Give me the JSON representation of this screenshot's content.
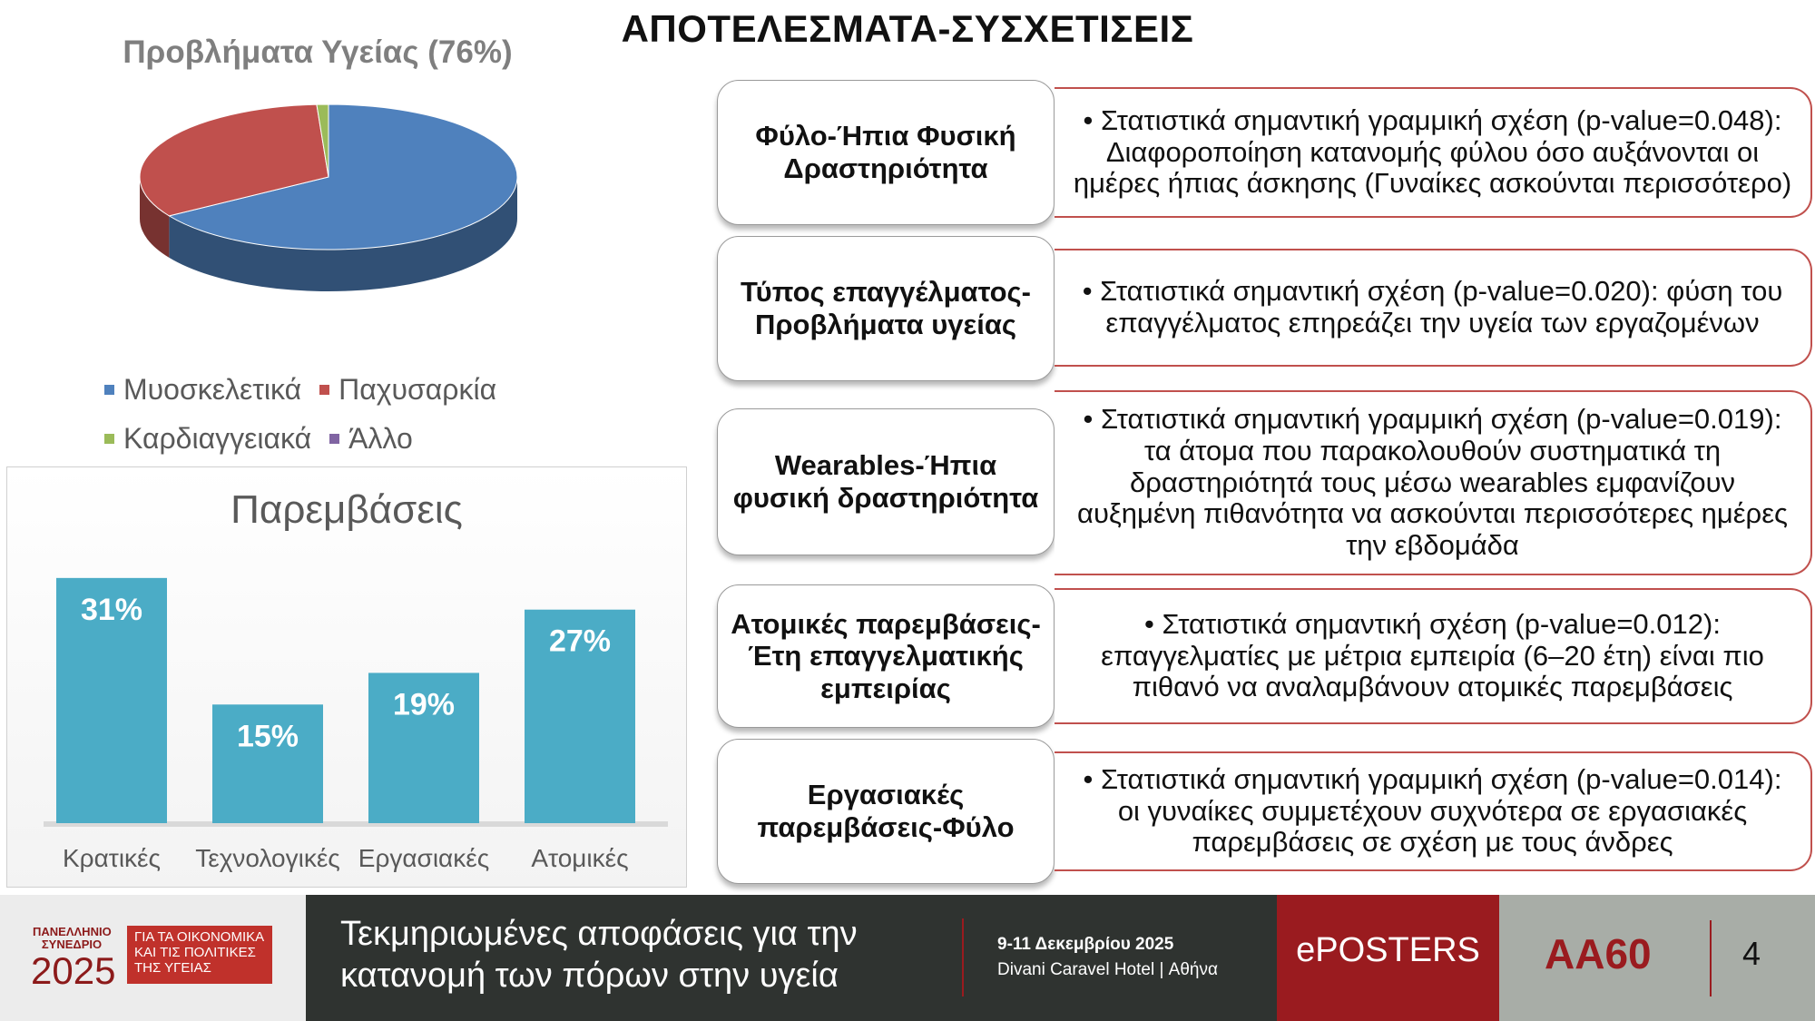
{
  "title": "ΑΠΟΤΕΛΕΣΜΑΤΑ-ΣΥΣΧΕΤΙΣΕΙΣ",
  "chart_data": [
    {
      "type": "pie",
      "title": "Προβλήματα Υγείας (76%)",
      "categories": [
        "Μυοσκελετικά",
        "Παχυσαρκία",
        "Καρδιαγγειακά",
        "Άλλο"
      ],
      "values": [
        66,
        33,
        1,
        0
      ],
      "colors": [
        "#4f81bd",
        "#c0504d",
        "#9bbb59",
        "#8064a2"
      ],
      "legend": "bottom"
    },
    {
      "type": "bar",
      "title": "Παρεμβάσεις",
      "categories": [
        "Κρατικές",
        "Τεχνολογικές",
        "Εργασιακές",
        "Ατομικές"
      ],
      "values": [
        31,
        15,
        19,
        27
      ],
      "value_labels": [
        "31%",
        "15%",
        "19%",
        "27%"
      ],
      "ylim": [
        0,
        35
      ],
      "color": "#4bacc6",
      "grid": false
    }
  ],
  "correlations": [
    {
      "label": "Φύλο-Ήπια Φυσική Δραστηριότητα",
      "text": "• Στατιστικά σημαντική γραμμική σχέση (p-value=0.048): Διαφοροποίηση κατανομής φύλου όσο αυξάνονται οι ημέρες ήπιας άσκησης (Γυναίκες ασκούνται περισσότερο)"
    },
    {
      "label": "Τύπος επαγγέλματος-Προβλήματα υγείας",
      "text": "• Στατιστικά σημαντική σχέση (p-value=0.020): φύση του επαγγέλματος επηρεάζει την υγεία των εργαζομένων"
    },
    {
      "label": "Wearables-Ήπια φυσική δραστηριότητα",
      "text": "• Στατιστικά σημαντική γραμμική σχέση (p-value=0.019): τα άτομα που παρακολουθούν συστηματικά τη δραστηριότητά τους μέσω wearables εμφανίζουν αυξημένη πιθανότητα να ασκούνται περισσότερες ημέρες την εβδομάδα"
    },
    {
      "label": "Ατομικές παρεμβάσεις-Έτη επαγγελματικής εμπειρίας",
      "text": "• Στατιστικά σημαντική σχέση (p-value=0.012): επαγγελματίες με μέτρια εμπειρία (6–20 έτη) είναι πιο πιθανό να αναλαμβάνουν ατομικές παρεμβάσεις"
    },
    {
      "label": "Εργασιακές παρεμβάσεις-Φύλο",
      "text": "• Στατιστικά σημαντική γραμμική σχέση (p-value=0.014): οι γυναίκες συμμετέχουν συχνότερα σε εργασιακές παρεμβάσεις σε σχέση με τους άνδρες"
    }
  ],
  "footer": {
    "logo_small": "ΠΑΝΕΛΛΗΝΙΟ ΣΥΝΕΔΡΙΟ",
    "logo_year": "2025",
    "logo_box": "ΓΙΑ ΤΑ ΟΙΚΟΝΟΜΙΚΑ ΚΑΙ ΤΙΣ ΠΟΛΙΤΙΚΕΣ ΤΗΣ ΥΓΕΙΑΣ",
    "tagline": "Τεκμηριωμένες αποφάσεις για την κατανομή των πόρων στην υγεία",
    "date": "9-11 Δεκεμβρίου 2025",
    "venue": "Divani Caravel Hotel | Αθήνα",
    "eposters": "ePOSTERS",
    "code": "ΑΑ60",
    "page": "4"
  }
}
